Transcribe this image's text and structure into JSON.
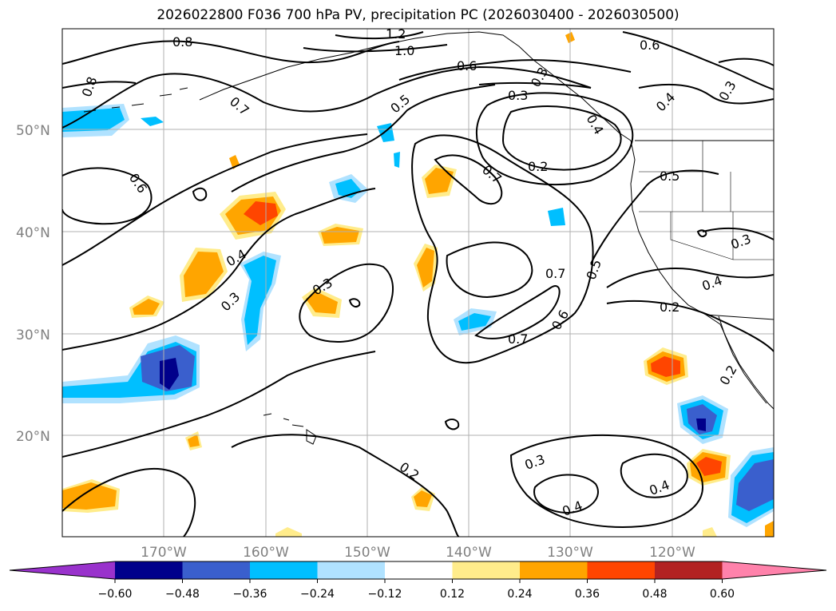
{
  "title": "2026022800 F036 700 hPa PV, precipitation PC (2026030400 - 2026030500)",
  "map": {
    "lat_ticks": [
      "50°N",
      "40°N",
      "30°N",
      "20°N"
    ],
    "lon_ticks": [
      "170°W",
      "160°W",
      "150°W",
      "140°W",
      "130°W",
      "120°W"
    ],
    "contour_labels": [
      "1.2",
      "1.0",
      "0.8",
      "0.8",
      "0.7",
      "0.6",
      "0.6",
      "0.5",
      "0.4",
      "0.3",
      "0.3",
      "0.2",
      "0.7",
      "0.7",
      "0.5",
      "0.6",
      "0.7",
      "0.4",
      "0.3",
      "0.3",
      "0.2",
      "0.3",
      "0.4",
      "0.4",
      "0.2",
      "0.5",
      "0.3",
      "0.4",
      "0.2",
      "0.6",
      "0.3",
      "0.4"
    ]
  },
  "colorbar": {
    "ticks": [
      "−0.60",
      "−0.48",
      "−0.36",
      "−0.24",
      "−0.12",
      "0.12",
      "0.24",
      "0.36",
      "0.48",
      "0.60"
    ],
    "colors": [
      "#9932cc",
      "#00008b",
      "#3a5fcd",
      "#00bfff",
      "#b0e2ff",
      "#ffffff",
      "#ffec8b",
      "#ffa500",
      "#ff4500",
      "#b22222",
      "#ff82ab"
    ]
  }
}
